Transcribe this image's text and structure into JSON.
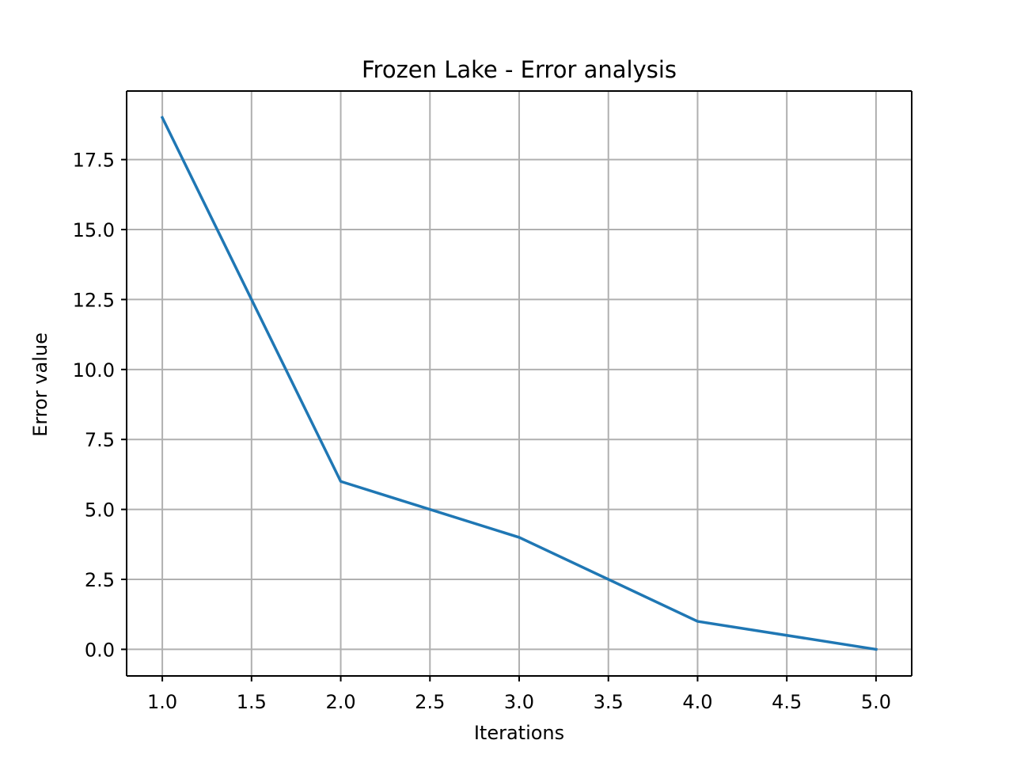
{
  "chart_data": {
    "type": "line",
    "title": "Frozen Lake - Error analysis",
    "xlabel": "Iterations",
    "ylabel": "Error value",
    "x": [
      1,
      2,
      3,
      4,
      5
    ],
    "series": [
      {
        "values": [
          19,
          6,
          4,
          1,
          0
        ]
      }
    ],
    "xlim": [
      0.8,
      5.2
    ],
    "ylim": [
      -0.95,
      19.95
    ],
    "x_ticks": [
      1.0,
      1.5,
      2.0,
      2.5,
      3.0,
      3.5,
      4.0,
      4.5,
      5.0
    ],
    "x_tick_labels": [
      "1.0",
      "1.5",
      "2.0",
      "2.5",
      "3.0",
      "3.5",
      "4.0",
      "4.5",
      "5.0"
    ],
    "y_ticks": [
      0.0,
      2.5,
      5.0,
      7.5,
      10.0,
      12.5,
      15.0,
      17.5
    ],
    "y_tick_labels": [
      "0.0",
      "2.5",
      "5.0",
      "7.5",
      "10.0",
      "12.5",
      "15.0",
      "17.5"
    ],
    "grid": true,
    "legend": "none",
    "colors": {
      "line": "#1f77b4",
      "grid": "#b0b0b0",
      "axes": "#000000",
      "background": "#ffffff"
    }
  }
}
